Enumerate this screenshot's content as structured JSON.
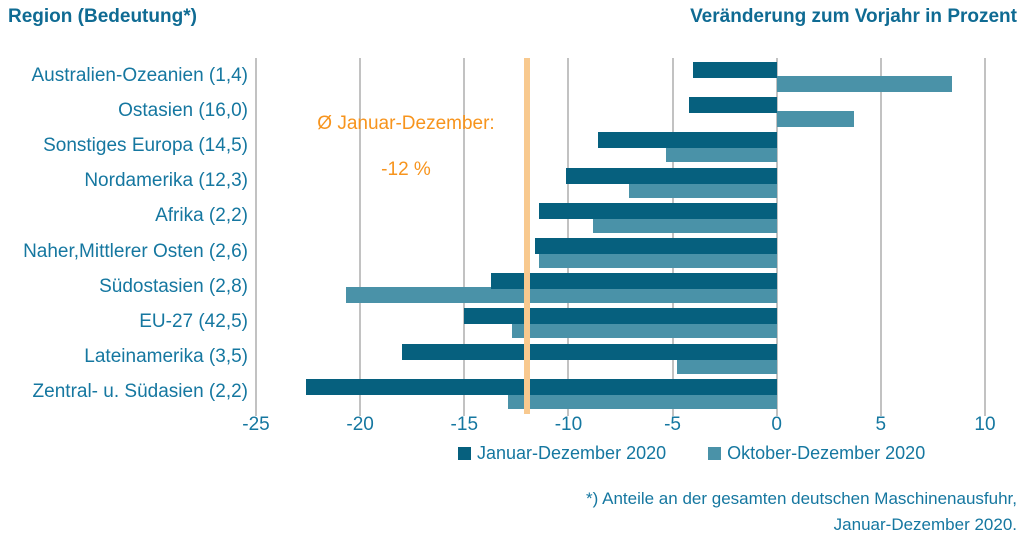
{
  "header": {
    "left_title": "Region (Bedeutung*)",
    "right_title": "Veränderung zum Vorjahr in Prozent"
  },
  "chart_data": {
    "type": "bar",
    "orientation": "horizontal",
    "title": "Veränderung zum Vorjahr in Prozent",
    "categories": [
      "Australien-Ozeanien (1,4)",
      "Ostasien (16,0)",
      "Sonstiges Europa (14,5)",
      "Nordamerika (12,3)",
      "Afrika (2,2)",
      "Naher,Mittlerer Osten (2,6)",
      "Südostasien (2,8)",
      "EU-27 (42,5)",
      "Lateinamerika (3,5)",
      "Zentral- u. Südasien (2,2)"
    ],
    "series": [
      {
        "name": "Januar-Dezember 2020",
        "color": "#06607e",
        "values": [
          -4.0,
          -4.2,
          -8.6,
          -10.1,
          -11.4,
          -11.6,
          -13.7,
          -15.0,
          -18.0,
          -22.6
        ]
      },
      {
        "name": "Oktober-Dezember 2020",
        "color": "#4a92a8",
        "values": [
          8.4,
          3.7,
          -5.3,
          -7.1,
          -8.8,
          -11.4,
          -20.7,
          -12.7,
          -4.8,
          -12.9
        ]
      }
    ],
    "xlim": [
      -25,
      10
    ],
    "xtick_values": [
      -25,
      -20,
      -15,
      -10,
      -5,
      0,
      5,
      10
    ],
    "xtick_labels": [
      "-25",
      "-20",
      "-15",
      "-10",
      "-5",
      "0",
      "5",
      "10"
    ],
    "grid": true,
    "legend_position": "bottom",
    "reference_line": {
      "value": -12,
      "color": "#f8c98f",
      "label_line1": "Ø Januar-Dezember:",
      "label_line2": "-12 %"
    }
  },
  "footnote": {
    "line1": "*) Anteile an der gesamten deutschen Maschinenausfuhr,",
    "line2": "Januar-Dezember 2020."
  },
  "colors": {
    "title_text": "#0f6b93",
    "label_text": "#1577a0",
    "bar_dark": "#06607e",
    "bar_teal": "#4a92a8",
    "annotation_orange": "#f7941d",
    "reference_line": "#f8c98f",
    "gridline": "#c2c2c2",
    "background": "#ffffff"
  }
}
